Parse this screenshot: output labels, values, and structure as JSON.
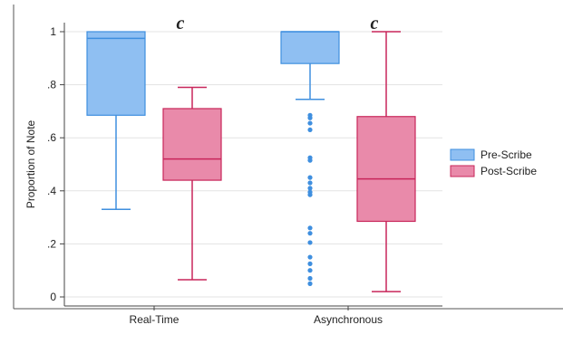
{
  "chart_data": {
    "type": "box",
    "ylabel": "Proportion of Note",
    "ylim": [
      0,
      1
    ],
    "yticks": [
      {
        "value": 0,
        "label": "0"
      },
      {
        "value": 0.2,
        "label": ".2"
      },
      {
        "value": 0.4,
        "label": ".4"
      },
      {
        "value": 0.6,
        "label": ".6"
      },
      {
        "value": 0.8,
        "label": ".8"
      },
      {
        "value": 1,
        "label": "1"
      }
    ],
    "grid": true,
    "legend_position": "right",
    "categories": [
      "Real-Time",
      "Asynchronous"
    ],
    "series": [
      {
        "name": "Pre-Scribe",
        "fill": "#8fbff2",
        "stroke": "#3f8fdf",
        "boxes": [
          {
            "category": "Real-Time",
            "whisker_low": 0.33,
            "q1": 0.685,
            "median": 0.975,
            "q3": 1.0,
            "whisker_high": 1.0,
            "outliers": []
          },
          {
            "category": "Asynchronous",
            "whisker_low": 0.745,
            "q1": 0.88,
            "median": 1.0,
            "q3": 1.0,
            "whisker_high": 1.0,
            "outliers": [
              0.685,
              0.675,
              0.655,
              0.63,
              0.525,
              0.515,
              0.45,
              0.43,
              0.41,
              0.395,
              0.385,
              0.26,
              0.24,
              0.205,
              0.15,
              0.125,
              0.1,
              0.07,
              0.05
            ]
          }
        ]
      },
      {
        "name": "Post-Scribe",
        "fill": "#e98aaa",
        "stroke": "#c8265a",
        "boxes": [
          {
            "category": "Real-Time",
            "whisker_low": 0.065,
            "q1": 0.44,
            "median": 0.52,
            "q3": 0.71,
            "whisker_high": 0.79,
            "outliers": []
          },
          {
            "category": "Asynchronous",
            "whisker_low": 0.02,
            "q1": 0.285,
            "median": 0.445,
            "q3": 0.68,
            "whisker_high": 1.0,
            "outliers": []
          }
        ]
      }
    ],
    "annotations": [
      {
        "text": "c",
        "category": "Real-Time",
        "y": 1.02
      },
      {
        "text": "c",
        "category": "Asynchronous",
        "y": 1.02
      }
    ]
  }
}
